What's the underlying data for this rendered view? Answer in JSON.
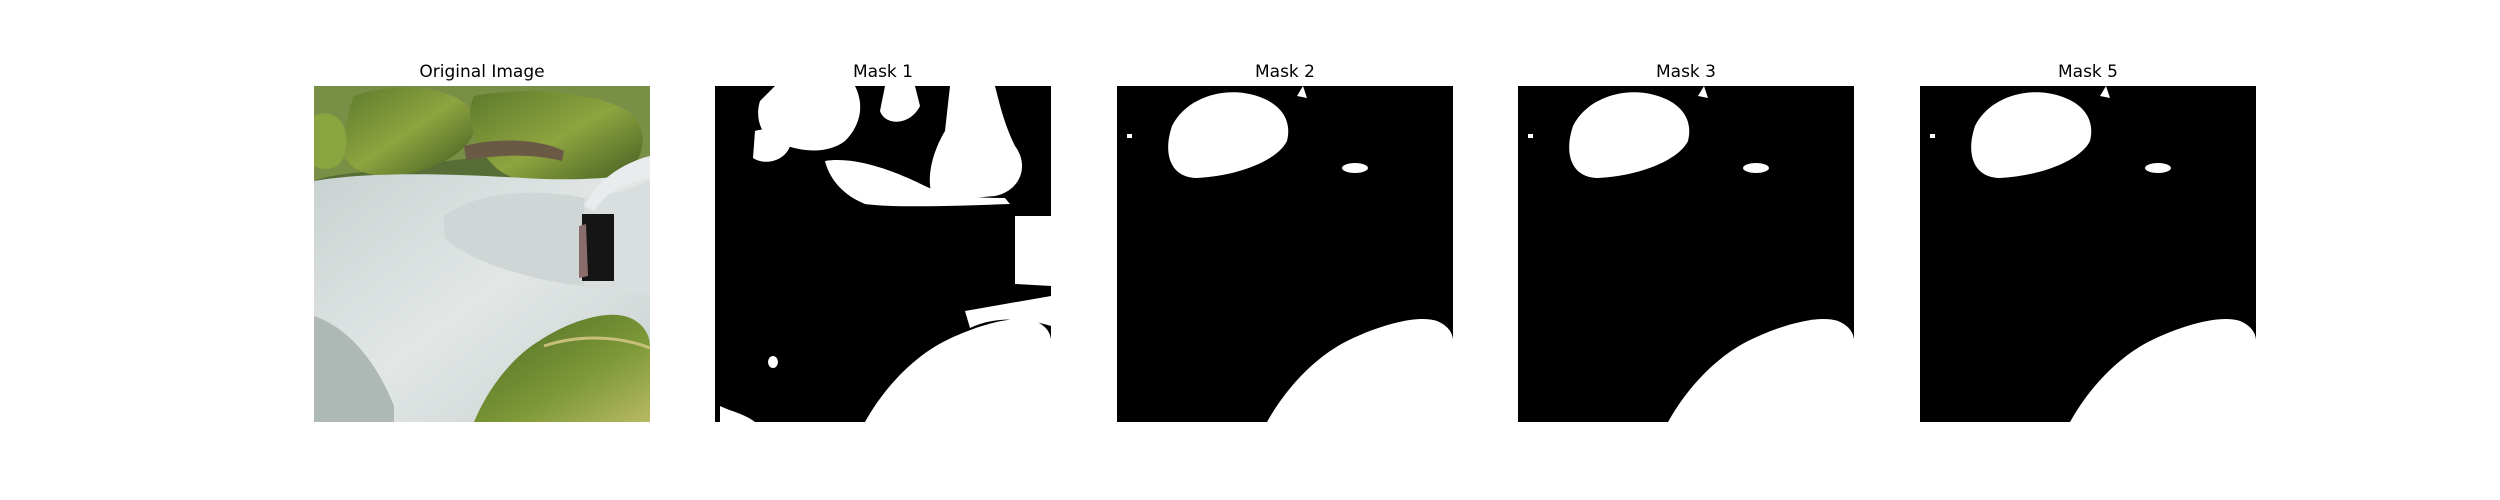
{
  "panels": [
    {
      "title": "Original Image",
      "kind": "photo-icon"
    },
    {
      "title": "Mask 1",
      "kind": "mask-icon"
    },
    {
      "title": "Mask 2",
      "kind": "mask-icon"
    },
    {
      "title": "Mask 3",
      "kind": "mask-icon"
    },
    {
      "title": "Mask 5",
      "kind": "mask-icon"
    }
  ],
  "colors": {
    "mask_background": "#000000",
    "mask_foreground": "#ffffff",
    "leaf_dark": "#3f5a22",
    "leaf_light": "#9fb04a",
    "pot_white": "#dfe4e4"
  }
}
